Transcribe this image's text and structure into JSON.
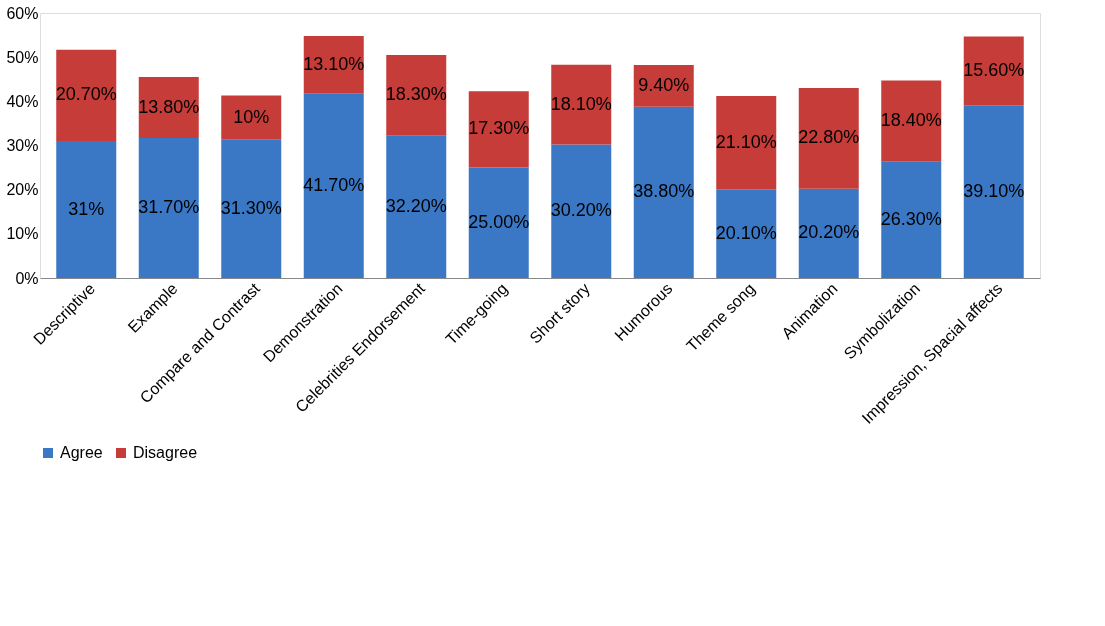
{
  "chart_data": {
    "type": "bar",
    "stacked": true,
    "categories": [
      "Descriptive",
      "Example",
      "Compare and Contrast",
      "Demonstration",
      "Celebrities Endorsement",
      "Time-going",
      "Short story",
      "Humorous",
      "Theme song",
      "Animation",
      "Symbolization",
      "Impression, Spacial affects"
    ],
    "series": [
      {
        "name": "Agree",
        "color": "#3a78c6",
        "values": [
          31,
          31.7,
          31.3,
          41.7,
          32.2,
          25.0,
          30.2,
          38.8,
          20.1,
          20.2,
          26.3,
          39.1
        ],
        "value_labels": [
          "31%",
          "31.70%",
          "31.30%",
          "41.70%",
          "32.20%",
          "25.00%",
          "30.20%",
          "38.80%",
          "20.10%",
          "20.20%",
          "26.30%",
          "39.10%"
        ]
      },
      {
        "name": "Disagree",
        "color": "#c63c38",
        "values": [
          20.7,
          13.8,
          10,
          13.1,
          18.3,
          17.3,
          18.1,
          9.4,
          21.1,
          22.8,
          18.4,
          15.6
        ],
        "value_labels": [
          "20.70%",
          "13.80%",
          "10%",
          "13.10%",
          "18.30%",
          "17.30%",
          "18.10%",
          "9.40%",
          "21.10%",
          "22.80%",
          "18.40%",
          "15.60%"
        ]
      }
    ],
    "ylim": [
      0,
      60
    ],
    "yticks": [
      {
        "value": 0,
        "label": "0%"
      },
      {
        "value": 10,
        "label": "10%"
      },
      {
        "value": 20,
        "label": "20%"
      },
      {
        "value": 30,
        "label": "30%"
      },
      {
        "value": 40,
        "label": "40%"
      },
      {
        "value": 50,
        "label": "50%"
      },
      {
        "value": 60,
        "label": "60%"
      }
    ],
    "grid": false,
    "legend": "bottom"
  }
}
